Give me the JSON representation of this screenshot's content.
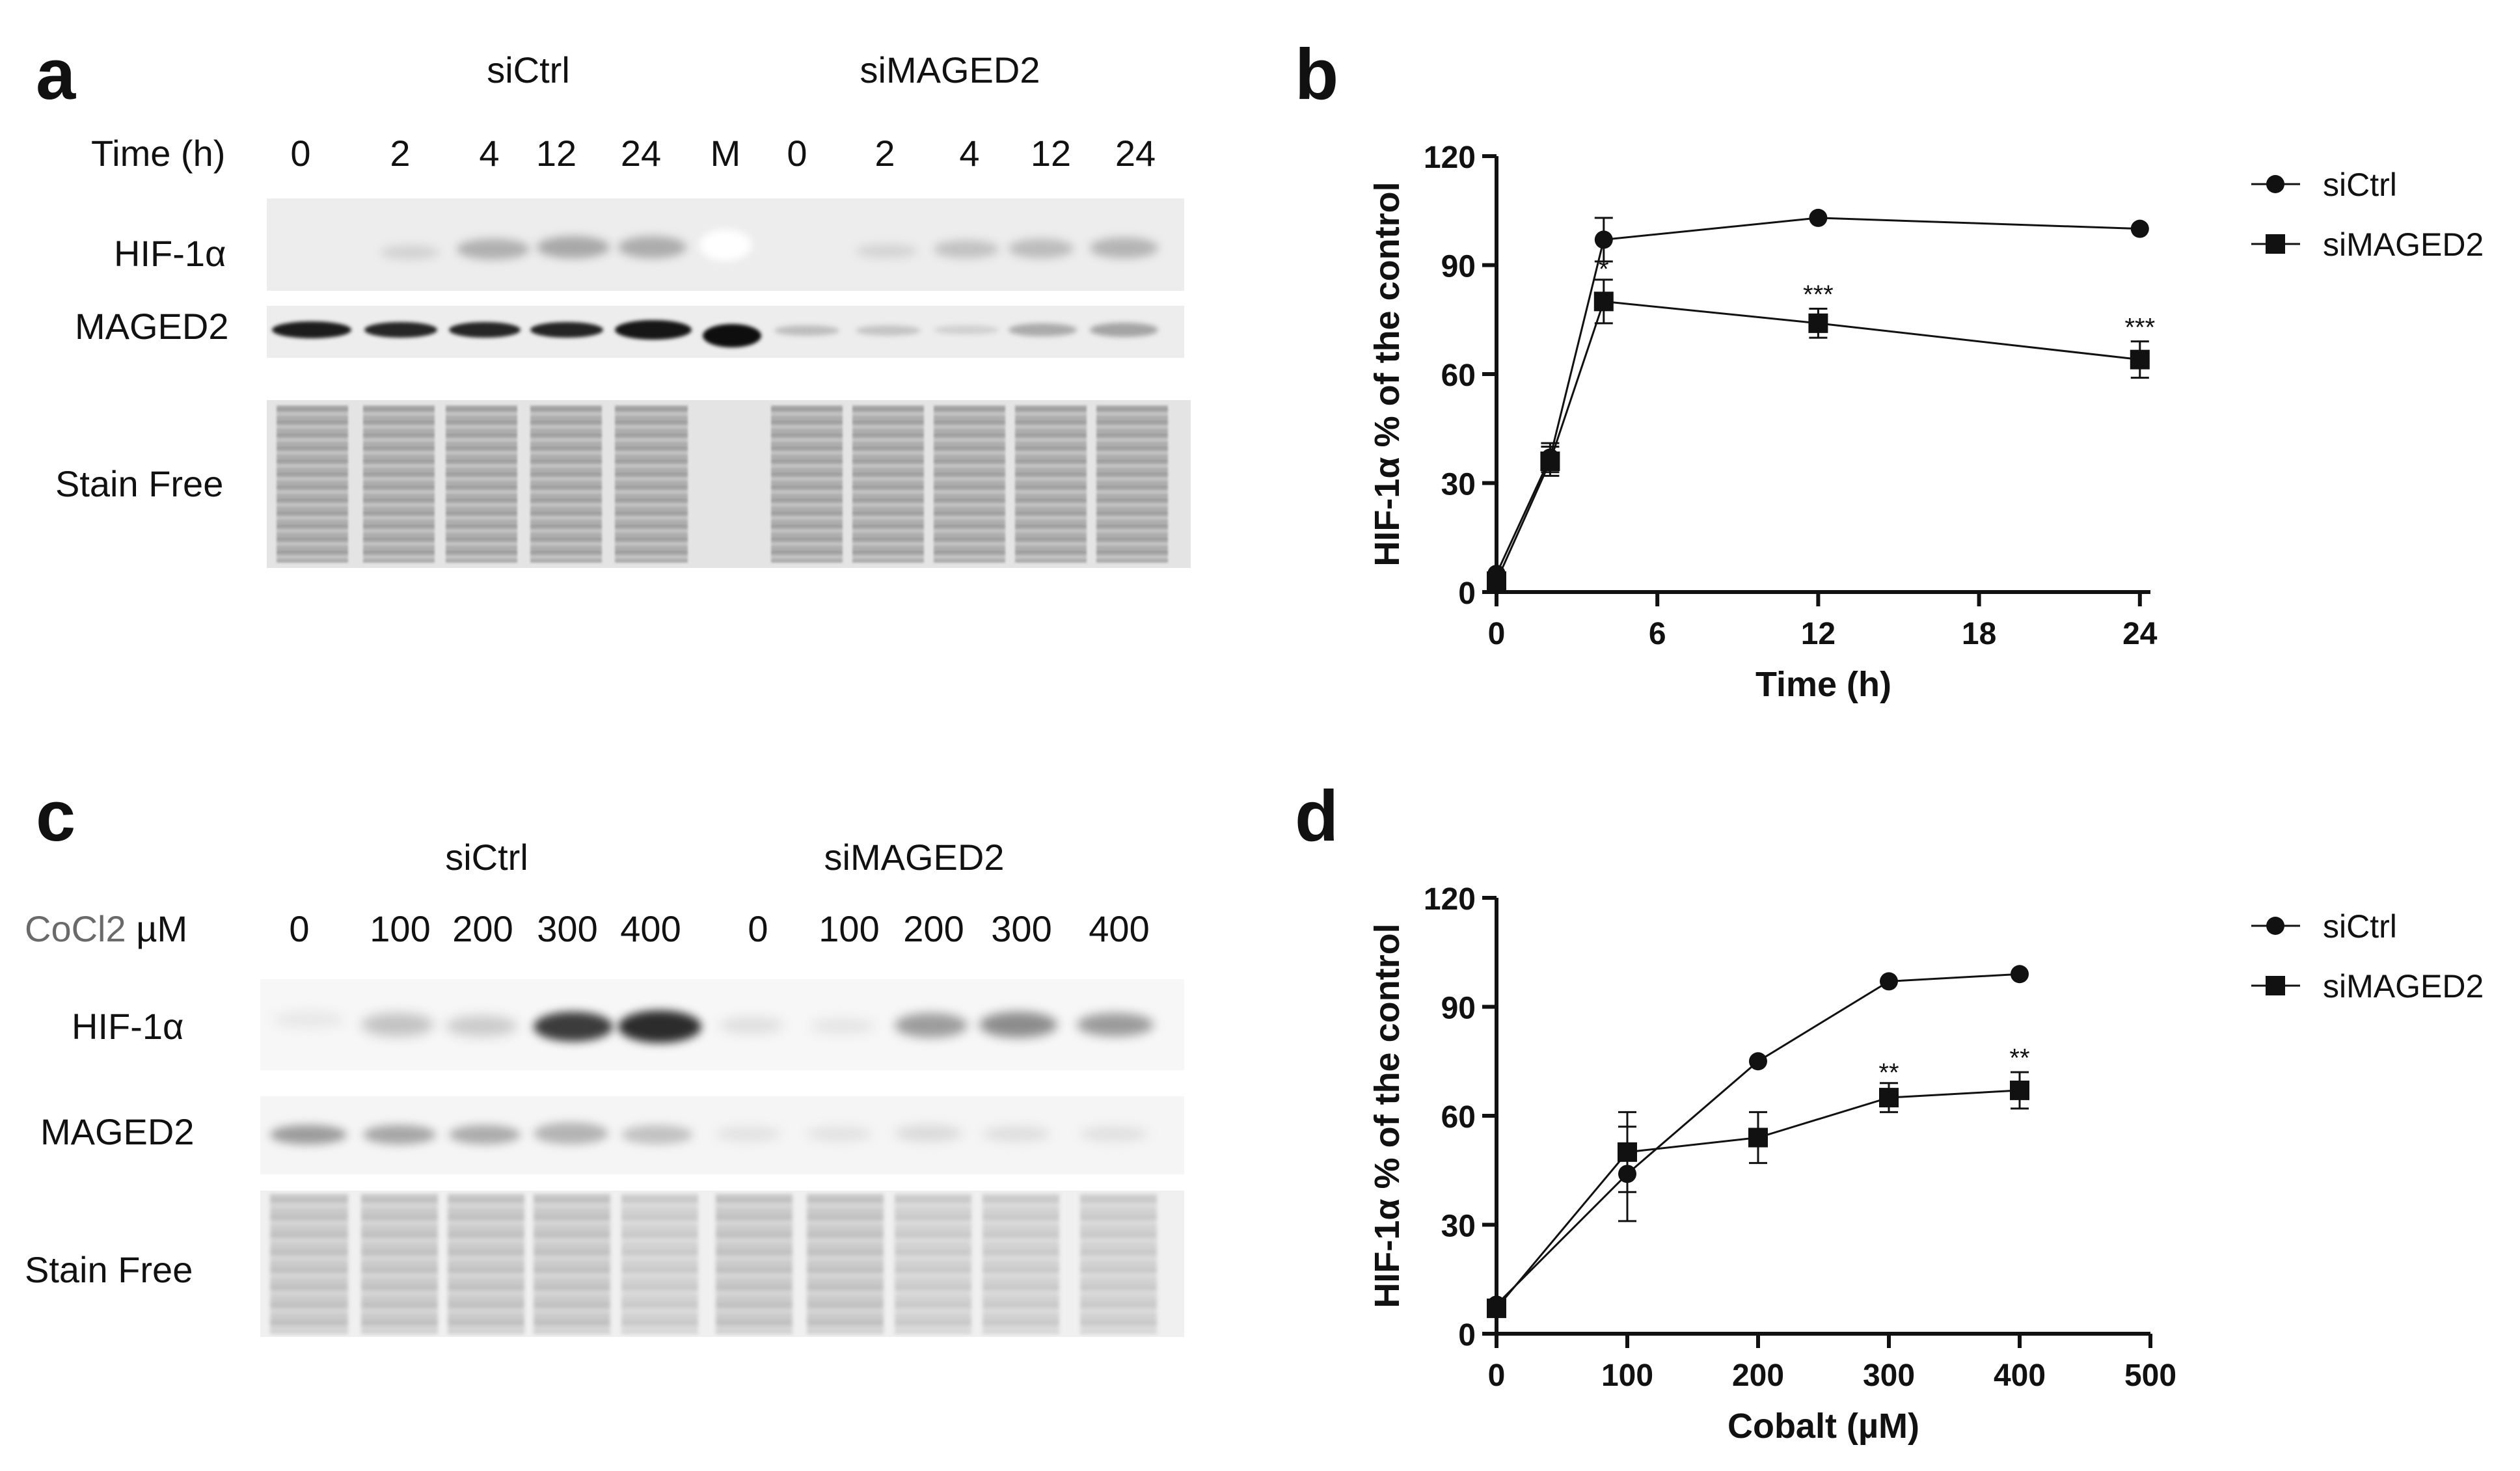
{
  "panel_a": {
    "letter": "a",
    "group_sictrl": "siCtrl",
    "group_simaged2": "siMAGED2",
    "time_label": "Time (h)",
    "lanes": [
      "0",
      "2",
      "4",
      "12",
      "24",
      "M",
      "0",
      "2",
      "4",
      "12",
      "24"
    ],
    "rows": [
      "HIF-1α",
      "MAGED2",
      "Stain Free"
    ]
  },
  "panel_c": {
    "letter": "c",
    "group_sictrl": "siCtrl",
    "group_simaged2": "siMAGED2",
    "conc_label_compound": "CoCl2",
    "conc_label_unit": "µM",
    "lanes": [
      "0",
      "100",
      "200",
      "300",
      "400",
      "0",
      "100",
      "200",
      "300",
      "400"
    ],
    "rows": [
      "HIF-1α",
      "MAGED2",
      "Stain Free"
    ]
  },
  "chart_data": [
    {
      "panel": "b",
      "type": "line",
      "xlabel": "Time (h)",
      "ylabel": "HIF-1α % of the control",
      "xlim": [
        0,
        25
      ],
      "ylim": [
        0,
        120
      ],
      "xticks": [
        0,
        6,
        12,
        18,
        24
      ],
      "yticks": [
        0,
        30,
        60,
        90,
        120
      ],
      "legend_position": "top-right",
      "series": [
        {
          "name": "siCtrl",
          "marker": "circle",
          "x": [
            0,
            2,
            4,
            12,
            24
          ],
          "y": [
            5,
            37,
            97,
            103,
            100
          ],
          "err": [
            0,
            4,
            6,
            0,
            0
          ]
        },
        {
          "name": "siMAGED2",
          "marker": "square",
          "x": [
            0,
            2,
            4,
            12,
            24
          ],
          "y": [
            3,
            36,
            80,
            74,
            64
          ],
          "err": [
            0,
            4,
            6,
            4,
            5
          ]
        }
      ],
      "annotations": [
        {
          "x": 4,
          "y": 89,
          "text": "*"
        },
        {
          "x": 12,
          "y": 82,
          "text": "***"
        },
        {
          "x": 24,
          "y": 73,
          "text": "***"
        }
      ]
    },
    {
      "panel": "d",
      "type": "line",
      "xlabel": "Cobalt (µM)",
      "ylabel": "HIF-1α % of the control",
      "xlim": [
        0,
        500
      ],
      "ylim": [
        0,
        120
      ],
      "xticks": [
        0,
        100,
        200,
        300,
        400,
        500
      ],
      "yticks": [
        0,
        30,
        60,
        90,
        120
      ],
      "legend_position": "top-right",
      "series": [
        {
          "name": "siCtrl",
          "marker": "circle",
          "x": [
            0,
            100,
            200,
            300,
            400
          ],
          "y": [
            8,
            44,
            75,
            97,
            99
          ],
          "err": [
            0,
            13,
            0,
            0,
            0
          ]
        },
        {
          "name": "siMAGED2",
          "marker": "square",
          "x": [
            0,
            100,
            200,
            300,
            400
          ],
          "y": [
            7,
            50,
            54,
            65,
            67
          ],
          "err": [
            0,
            11,
            7,
            4,
            5
          ]
        }
      ],
      "annotations": [
        {
          "x": 300,
          "y": 72,
          "text": "**"
        },
        {
          "x": 400,
          "y": 76,
          "text": "**"
        }
      ]
    }
  ],
  "colors": {
    "ink": "#111111",
    "blot_bg": "#ececec",
    "band_dark": "#1a1a1a",
    "band_mid": "#8a8a8a",
    "label_gray": "#6a6a6a"
  }
}
